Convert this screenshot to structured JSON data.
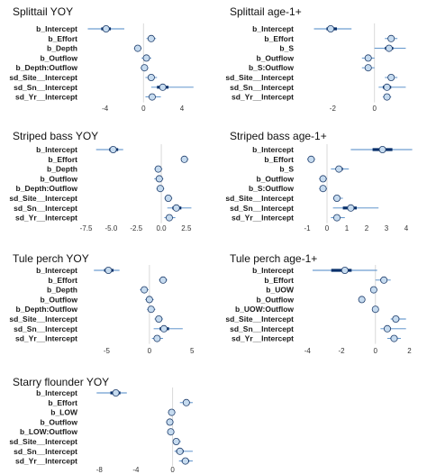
{
  "chart_data": [
    {
      "type": "forest",
      "title": "Splittail YOY",
      "xlim": [
        -6.5,
        5.5
      ],
      "xticks": [
        "-4",
        "0",
        "4"
      ],
      "categories": [
        "b_Intercept",
        "b_Effort",
        "b_Depth",
        "b_Outflow",
        "b_Depth:Outflow",
        "sd_Site__Intercept",
        "sd_Sn__Intercept",
        "sd_Yr__Intercept"
      ],
      "estimate": [
        -3.9,
        0.8,
        -0.6,
        0.3,
        0.1,
        0.8,
        2.0,
        0.9
      ],
      "ci50": [
        [
          -4.4,
          -3.4
        ],
        [
          0.6,
          1.0
        ],
        [
          -0.8,
          -0.4
        ],
        [
          0.1,
          0.5
        ],
        [
          -0.1,
          0.3
        ],
        [
          0.6,
          1.0
        ],
        [
          1.4,
          2.6
        ],
        [
          0.6,
          1.2
        ]
      ],
      "ci95": [
        [
          -5.8,
          -2.0
        ],
        [
          0.3,
          1.3
        ],
        [
          -1.0,
          -0.2
        ],
        [
          -0.2,
          0.8
        ],
        [
          -0.3,
          0.5
        ],
        [
          0.2,
          1.4
        ],
        [
          0.8,
          5.2
        ],
        [
          0.2,
          1.8
        ]
      ]
    },
    {
      "type": "forest",
      "title": "Splittail age-1+",
      "xlim": [
        -3.7,
        2.0
      ],
      "xticks": [
        "-2",
        "0"
      ],
      "categories": [
        "b_Intercept",
        "b_Effort",
        "b_S",
        "b_Outflow",
        "b_S:Outflow",
        "sd_Site__Intercept",
        "sd_Sn__Intercept",
        "sd_Yr__Intercept"
      ],
      "estimate": [
        -2.1,
        0.8,
        0.7,
        -0.3,
        -0.3,
        0.8,
        0.6,
        0.6
      ],
      "ci50": [
        [
          -2.3,
          -1.8
        ],
        [
          0.7,
          0.9
        ],
        [
          0.5,
          0.9
        ],
        [
          -0.4,
          -0.2
        ],
        [
          -0.4,
          -0.2
        ],
        [
          0.7,
          0.9
        ],
        [
          0.4,
          0.8
        ],
        [
          0.5,
          0.7
        ]
      ],
      "ci95": [
        [
          -2.9,
          -1.1
        ],
        [
          0.5,
          1.1
        ],
        [
          0.0,
          1.5
        ],
        [
          -0.6,
          0.0
        ],
        [
          -0.6,
          0.0
        ],
        [
          0.5,
          1.1
        ],
        [
          0.2,
          1.5
        ],
        [
          0.4,
          0.8
        ]
      ]
    },
    {
      "type": "forest",
      "title": "Striped bass YOY",
      "xlim": [
        -8.0,
        3.5
      ],
      "xticks": [
        "-7.5",
        "-5.0",
        "-2.5",
        "0.0",
        "2.5"
      ],
      "categories": [
        "b_Intercept",
        "b_Effort",
        "b_Depth",
        "b_Outflow",
        "b_Depth:Outflow",
        "sd_Site__Intercept",
        "sd_Sn__Intercept",
        "sd_Yr__Intercept"
      ],
      "estimate": [
        -4.8,
        2.3,
        -0.3,
        -0.2,
        -0.1,
        0.7,
        1.5,
        0.8
      ],
      "ci50": [
        [
          -5.2,
          -4.3
        ],
        [
          2.2,
          2.5
        ],
        [
          -0.5,
          -0.1
        ],
        [
          -0.4,
          0.0
        ],
        [
          -0.3,
          0.1
        ],
        [
          0.5,
          0.9
        ],
        [
          1.1,
          2.0
        ],
        [
          0.6,
          1.0
        ]
      ],
      "ci95": [
        [
          -6.5,
          -3.8
        ],
        [
          2.0,
          2.7
        ],
        [
          -0.7,
          0.1
        ],
        [
          -0.7,
          0.2
        ],
        [
          -0.5,
          0.3
        ],
        [
          0.3,
          1.1
        ],
        [
          0.6,
          3.0
        ],
        [
          0.3,
          1.4
        ]
      ]
    },
    {
      "type": "forest",
      "title": "Striped bass age-1+",
      "xlim": [
        -1.5,
        4.5
      ],
      "xticks": [
        "-1",
        "0",
        "1",
        "2",
        "3",
        "4"
      ],
      "categories": [
        "b_Intercept",
        "b_Effort",
        "b_S",
        "b_Outflow",
        "b_S:Outflow",
        "sd_Site__Intercept",
        "sd_Sn__Intercept",
        "sd_Yr__Intercept"
      ],
      "estimate": [
        2.8,
        -0.8,
        0.6,
        -0.2,
        -0.2,
        0.5,
        1.2,
        0.5
      ],
      "ci50": [
        [
          2.3,
          3.3
        ],
        [
          -0.9,
          -0.7
        ],
        [
          0.5,
          0.8
        ],
        [
          -0.3,
          -0.1
        ],
        [
          -0.3,
          -0.1
        ],
        [
          0.4,
          0.6
        ],
        [
          0.8,
          1.5
        ],
        [
          0.4,
          0.6
        ]
      ],
      "ci95": [
        [
          1.2,
          4.3
        ],
        [
          -1.0,
          -0.6
        ],
        [
          0.2,
          1.1
        ],
        [
          -0.4,
          0.0
        ],
        [
          -0.4,
          0.0
        ],
        [
          0.3,
          0.8
        ],
        [
          0.3,
          2.6
        ],
        [
          0.2,
          0.9
        ]
      ]
    },
    {
      "type": "forest",
      "title": "Tule perch YOY",
      "xlim": [
        -8.0,
        5.5
      ],
      "xticks": [
        "-5",
        "0",
        "5"
      ],
      "categories": [
        "b_Intercept",
        "b_Effort",
        "b_Depth",
        "b_Outflow",
        "b_Depth:Outflow",
        "sd_Site__Intercept",
        "sd_Sn__Intercept",
        "sd_Yr__Intercept"
      ],
      "estimate": [
        -4.8,
        1.6,
        -0.6,
        0.0,
        0.2,
        1.1,
        1.7,
        0.9
      ],
      "ci50": [
        [
          -5.3,
          -4.2
        ],
        [
          1.4,
          1.8
        ],
        [
          -0.8,
          -0.4
        ],
        [
          -0.2,
          0.2
        ],
        [
          0.0,
          0.4
        ],
        [
          0.9,
          1.3
        ],
        [
          1.2,
          2.3
        ],
        [
          0.6,
          1.2
        ]
      ],
      "ci95": [
        [
          -6.5,
          -3.5
        ],
        [
          1.1,
          2.1
        ],
        [
          -1.1,
          -0.1
        ],
        [
          -0.5,
          0.5
        ],
        [
          -0.3,
          0.7
        ],
        [
          0.6,
          1.6
        ],
        [
          0.5,
          3.9
        ],
        [
          0.3,
          1.6
        ]
      ]
    },
    {
      "type": "forest",
      "title": "Tule perch age-1+",
      "xlim": [
        -4.6,
        2.4
      ],
      "xticks": [
        "-4",
        "-2",
        "0",
        "2"
      ],
      "categories": [
        "b_Intercept",
        "b_Effort",
        "b_UOW",
        "b_Outflow",
        "b_UOW:Outflow",
        "sd_Site__Intercept",
        "sd_Sn__Intercept",
        "sd_Yr__Intercept"
      ],
      "estimate": [
        -1.8,
        0.5,
        -0.1,
        -0.8,
        0.0,
        1.2,
        0.7,
        1.1
      ],
      "ci50": [
        [
          -2.6,
          -1.4
        ],
        [
          0.3,
          0.6
        ],
        [
          -0.2,
          0.0
        ],
        [
          -0.9,
          -0.7
        ],
        [
          -0.1,
          0.1
        ],
        [
          1.1,
          1.4
        ],
        [
          0.6,
          0.9
        ],
        [
          0.9,
          1.3
        ]
      ],
      "ci95": [
        [
          -3.7,
          0.1
        ],
        [
          0.0,
          0.9
        ],
        [
          -0.3,
          0.1
        ],
        [
          -1.0,
          -0.6
        ],
        [
          -0.2,
          0.2
        ],
        [
          0.9,
          1.8
        ],
        [
          0.3,
          1.8
        ],
        [
          0.7,
          1.5
        ]
      ]
    },
    {
      "type": "forest",
      "title": "Starry flounder YOY",
      "xlim": [
        -10.0,
        2.6
      ],
      "xticks": [
        "-8",
        "-4",
        "0"
      ],
      "categories": [
        "b_Intercept",
        "b_Effort",
        "b_LOW",
        "b_Outflow",
        "b_LOW:Outflow",
        "sd_Site__Intercept",
        "sd_Sn__Intercept",
        "sd_Yr__Intercept"
      ],
      "estimate": [
        -6.2,
        1.5,
        -0.1,
        -0.3,
        -0.2,
        0.4,
        0.8,
        1.4
      ],
      "ci50": [
        [
          -6.8,
          -5.7
        ],
        [
          1.3,
          1.7
        ],
        [
          -0.3,
          0.1
        ],
        [
          -0.5,
          -0.1
        ],
        [
          -0.4,
          0.0
        ],
        [
          0.2,
          0.6
        ],
        [
          0.4,
          1.2
        ],
        [
          1.0,
          1.8
        ]
      ],
      "ci95": [
        [
          -8.3,
          -5.0
        ],
        [
          0.8,
          2.2
        ],
        [
          -0.5,
          0.3
        ],
        [
          -0.7,
          0.1
        ],
        [
          -0.6,
          0.2
        ],
        [
          0.0,
          0.9
        ],
        [
          0.2,
          2.2
        ],
        [
          0.7,
          2.2
        ]
      ]
    }
  ],
  "colors": {
    "point_fill": "#c6dbef",
    "point_stroke": "#1f3d6b",
    "ci50": "#08306b",
    "ci95": "#4a86c5",
    "zero_line": "#d9d9d9"
  }
}
